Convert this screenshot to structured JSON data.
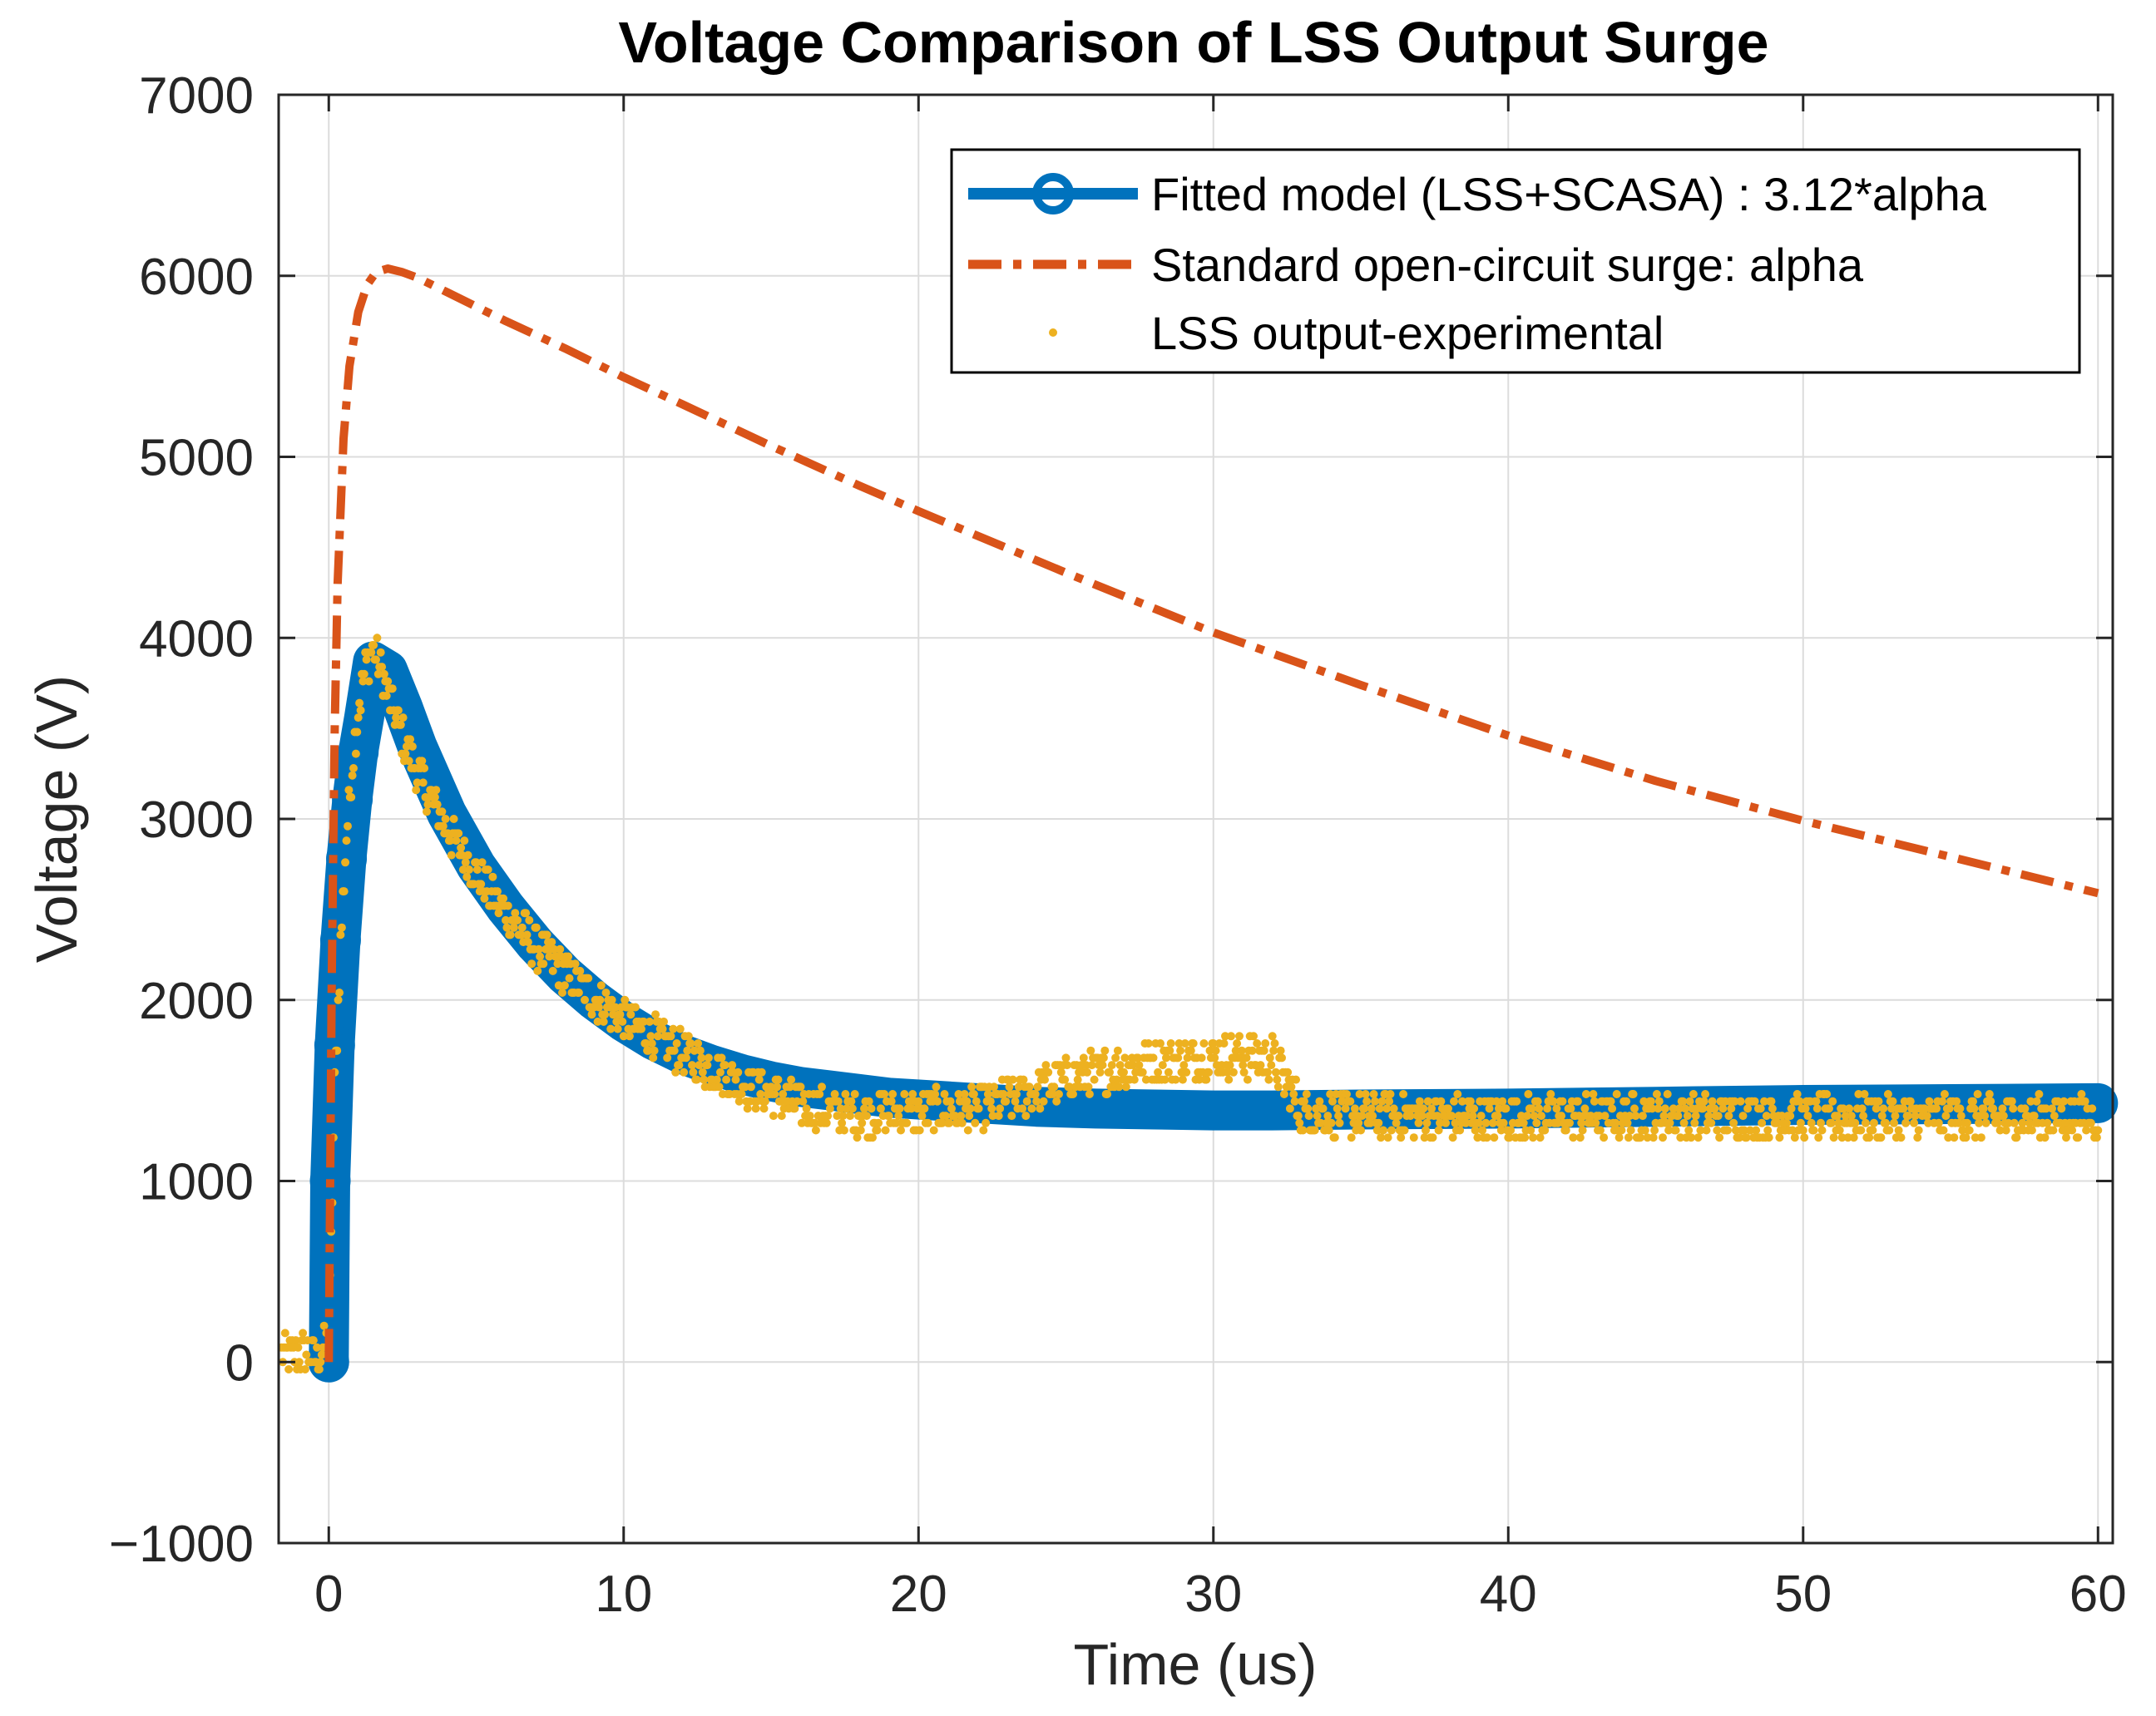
{
  "chart_data": {
    "type": "line",
    "title": "Voltage Comparison of LSS Output Surge",
    "xlabel": "Time (us)",
    "ylabel": "Voltage (V)",
    "xlim": [
      -1.7,
      60.5
    ],
    "ylim": [
      -1000,
      7000
    ],
    "xticks": [
      0,
      10,
      20,
      30,
      40,
      50,
      60
    ],
    "yticks": [
      -1000,
      0,
      1000,
      2000,
      3000,
      4000,
      5000,
      6000,
      7000
    ],
    "ytick_labels": [
      "−1000",
      "0",
      "1000",
      "2000",
      "3000",
      "4000",
      "5000",
      "6000",
      "7000"
    ],
    "grid": true,
    "legend_position": "top-right",
    "colors": {
      "fitted": "#0072BD",
      "standard": "#D95319",
      "experimental": "#EDB120"
    },
    "series": [
      {
        "name": "Fitted model (LSS+SCASA) : 3.12*alpha",
        "style": "line-with-circles",
        "x": [
          0,
          0.05,
          0.2,
          0.4,
          0.6,
          0.8,
          1.0,
          1.2,
          1.5,
          2,
          2.5,
          3,
          4,
          5,
          6,
          7,
          8,
          9,
          10,
          11,
          12,
          13,
          14,
          15,
          16,
          17,
          18,
          19,
          20,
          22,
          24,
          26,
          28,
          30,
          32,
          35,
          40,
          45,
          50,
          55,
          60
        ],
        "values": [
          0,
          1000,
          1750,
          2330,
          2780,
          3110,
          3370,
          3560,
          3870,
          3820,
          3620,
          3400,
          3030,
          2740,
          2510,
          2310,
          2140,
          2000,
          1880,
          1780,
          1700,
          1640,
          1590,
          1550,
          1520,
          1500,
          1480,
          1460,
          1450,
          1430,
          1410,
          1400,
          1395,
          1390,
          1390,
          1395,
          1400,
          1410,
          1420,
          1425,
          1430
        ],
        "markers_x": [
          0,
          0.05,
          0.2,
          0.4,
          0.6,
          0.8,
          1.0
        ],
        "markers_y": [
          0,
          1000,
          1750,
          2330,
          2780,
          3110,
          3370
        ]
      },
      {
        "name": "Standard open-circuit surge: alpha",
        "style": "dash-dot",
        "x": [
          0,
          0.1,
          0.2,
          0.3,
          0.5,
          0.7,
          1.0,
          1.3,
          1.6,
          2.0,
          2.5,
          3,
          4,
          5,
          6,
          8,
          10,
          12,
          15,
          18,
          20,
          25,
          30,
          35,
          40,
          45,
          50,
          55,
          60
        ],
        "values": [
          0,
          2100,
          3500,
          4300,
          5100,
          5500,
          5800,
          5950,
          6020,
          6040,
          6020,
          5990,
          5910,
          5830,
          5750,
          5600,
          5440,
          5290,
          5060,
          4840,
          4700,
          4360,
          4030,
          3740,
          3460,
          3210,
          2990,
          2790,
          2590
        ]
      },
      {
        "name": "LSS output-experimental",
        "style": "dots",
        "x": [
          -1.6,
          -1.2,
          -0.8,
          -0.4,
          0,
          0.2,
          0.4,
          0.6,
          0.8,
          1.0,
          1.2,
          1.5,
          2,
          2.5,
          3,
          4,
          5,
          6,
          7,
          8,
          9,
          10,
          11,
          12,
          13,
          14,
          15,
          16,
          17,
          18,
          20,
          22,
          24,
          25,
          26,
          27,
          28,
          29,
          30,
          31,
          32,
          33,
          35,
          40,
          45,
          50,
          55,
          60
        ],
        "values": [
          50,
          30,
          60,
          20,
          100,
          1500,
          2300,
          2900,
          3300,
          3600,
          3800,
          3950,
          3700,
          3450,
          3250,
          2950,
          2700,
          2480,
          2300,
          2150,
          2010,
          1900,
          1800,
          1700,
          1620,
          1540,
          1470,
          1420,
          1390,
          1370,
          1380,
          1400,
          1500,
          1560,
          1600,
          1630,
          1660,
          1680,
          1690,
          1690,
          1680,
          1380,
          1360,
          1350,
          1360,
          1350,
          1350,
          1350
        ],
        "spread": 120
      }
    ]
  }
}
